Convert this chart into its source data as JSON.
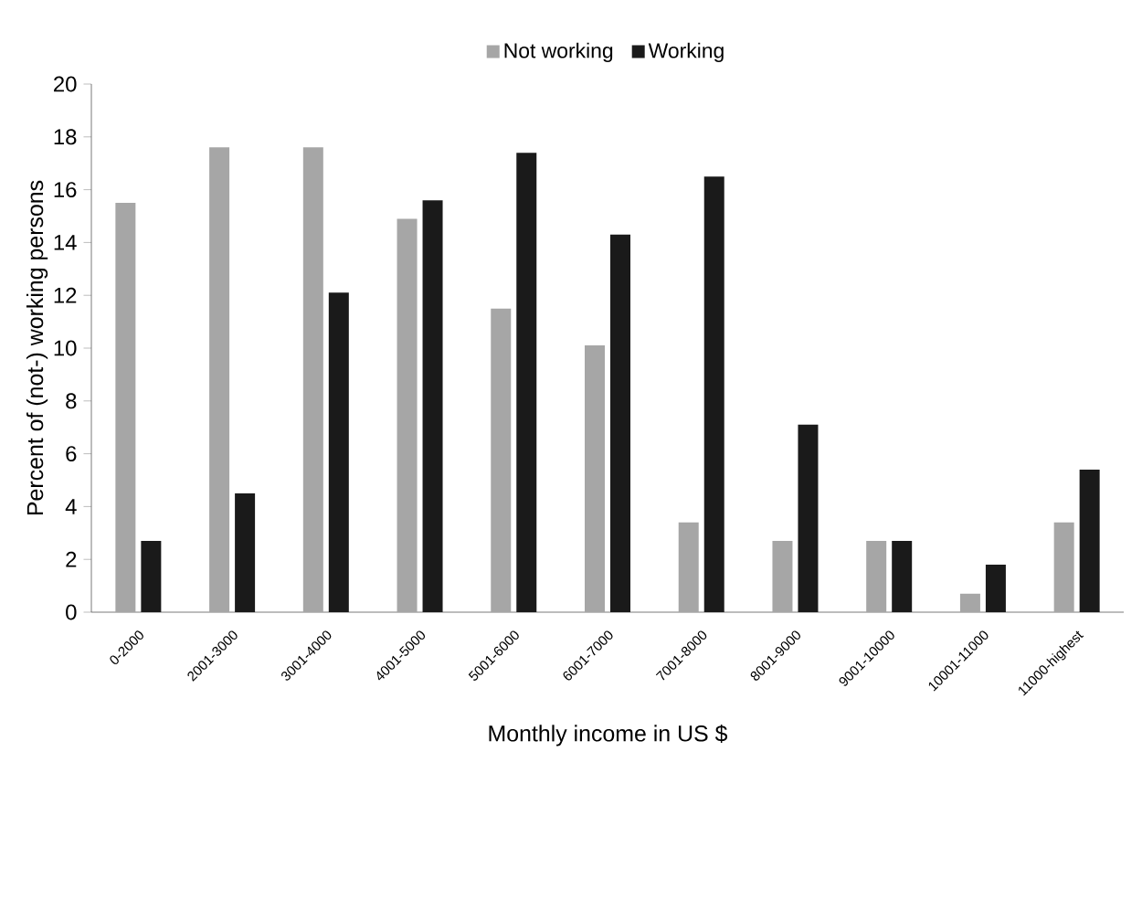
{
  "chart_data": {
    "type": "bar",
    "xlabel": "Monthly income in US $",
    "ylabel": "Percent of (not-) working persons",
    "categories": [
      "0-2000",
      "2001-3000",
      "3001-4000",
      "4001-5000",
      "5001-6000",
      "6001-7000",
      "7001-8000",
      "8001-9000",
      "9001-10000",
      "10001-11000",
      "11000-highest"
    ],
    "series": [
      {
        "name": "Not working",
        "color": "#a6a6a6",
        "values": [
          15.5,
          17.6,
          17.6,
          14.9,
          11.5,
          10.1,
          3.4,
          2.7,
          2.7,
          0.7,
          3.4
        ]
      },
      {
        "name": "Working",
        "color": "#1a1a1a",
        "values": [
          2.7,
          4.5,
          12.1,
          15.6,
          17.4,
          14.3,
          16.5,
          7.1,
          2.7,
          1.8,
          5.4
        ]
      }
    ],
    "ylim": [
      0,
      20
    ],
    "yticks": [
      0,
      2,
      4,
      6,
      8,
      10,
      12,
      14,
      16,
      18,
      20
    ],
    "grid": false,
    "legend": "top"
  }
}
